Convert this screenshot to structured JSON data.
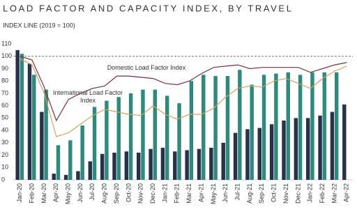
{
  "chart_data": {
    "type": "bar-line",
    "title": "LOAD FACTOR AND CAPACITY INDEX, BY TRAVEL",
    "subtitle": "INDEX LINE (2019 = 100)",
    "categories": [
      "Jan-20",
      "Feb-20",
      "Mar-20",
      "Apr-20",
      "May-20",
      "Jun-20",
      "Jul-20",
      "Aug-20",
      "Sep-20",
      "Oct-20",
      "Nov-20",
      "Dec-20",
      "Jan-21",
      "Feb-21",
      "Mar-21",
      "Apr-21",
      "May-21",
      "Jun-21",
      "Jul-21",
      "Aug-21",
      "Sep-21",
      "Oct-21",
      "Nov-21",
      "Dec-21",
      "Jan-22",
      "Feb-22",
      "Mar-22",
      "Apr-22"
    ],
    "series": [
      {
        "kind": "bar",
        "color": "#27314a",
        "values": [
          105,
          94,
          55,
          5,
          4,
          7,
          15,
          21,
          22,
          23,
          22,
          25,
          26,
          23,
          24,
          25,
          26,
          30,
          38,
          41,
          42,
          45,
          48,
          50,
          50,
          52,
          55,
          61
        ]
      },
      {
        "kind": "bar",
        "color": "#2f8a7d",
        "values": [
          102,
          85,
          73,
          28,
          32,
          44,
          59,
          64,
          67,
          70,
          73,
          73,
          68,
          62,
          80,
          85,
          84,
          84,
          89,
          77,
          85,
          86,
          87,
          85,
          87,
          87,
          87,
          null
        ]
      },
      {
        "kind": "line",
        "name": "Domestic Load Factor Index",
        "color": "#7a2f3e",
        "values": [
          100,
          97,
          75,
          48,
          65,
          70,
          74,
          76,
          84,
          84,
          83,
          82,
          78,
          77,
          80,
          86,
          91,
          92,
          93,
          90,
          91,
          91,
          91,
          91,
          87,
          90,
          93,
          95
        ]
      },
      {
        "kind": "line",
        "name": "International Load Factor Index",
        "color": "#d9a05b",
        "values": [
          98,
          93,
          70,
          35,
          38,
          45,
          52,
          57,
          55,
          53,
          52,
          60,
          53,
          49,
          53,
          53,
          58,
          67,
          74,
          76,
          75,
          80,
          82,
          78,
          74,
          82,
          88,
          92
        ]
      }
    ],
    "reference_line": 100,
    "ylim": [
      0,
      110
    ],
    "yticks": [
      0,
      10,
      20,
      30,
      40,
      50,
      60,
      70,
      80,
      90,
      100,
      110
    ]
  }
}
